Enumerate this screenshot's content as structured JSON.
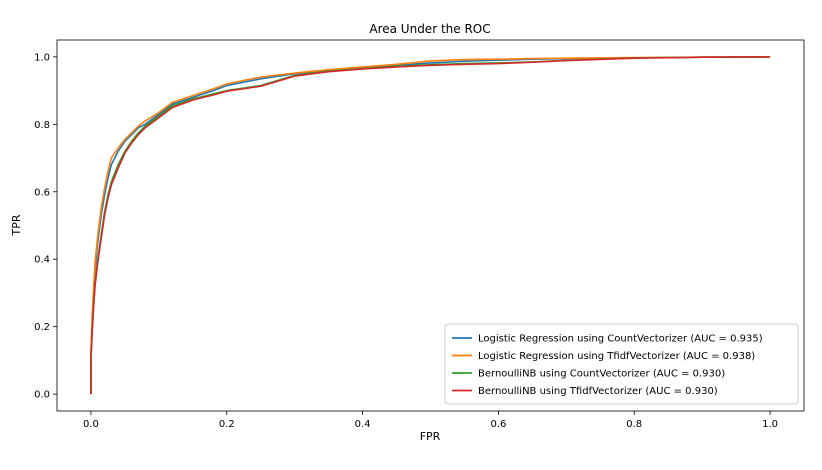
{
  "chart_data": {
    "type": "line",
    "title": "Area Under the ROC",
    "xlabel": "FPR",
    "ylabel": "TPR",
    "xlim": [
      -0.05,
      1.05
    ],
    "ylim": [
      -0.05,
      1.05
    ],
    "xticks": [
      0.0,
      0.2,
      0.4,
      0.6,
      0.8,
      1.0
    ],
    "yticks": [
      0.0,
      0.2,
      0.4,
      0.6,
      0.8,
      1.0
    ],
    "xtick_labels": [
      "0.0",
      "0.2",
      "0.4",
      "0.6",
      "0.8",
      "1.0"
    ],
    "ytick_labels": [
      "0.0",
      "0.2",
      "0.4",
      "0.6",
      "0.8",
      "1.0"
    ],
    "grid": false,
    "legend_position": "lower-right",
    "series": [
      {
        "name": "Logistic Regression using CountVectorizer (AUC = 0.935)",
        "color": "#1f77b4",
        "x": [
          0.0,
          0.0,
          0.002,
          0.004,
          0.006,
          0.01,
          0.015,
          0.02,
          0.025,
          0.03,
          0.04,
          0.05,
          0.06,
          0.07,
          0.08,
          0.1,
          0.12,
          0.15,
          0.18,
          0.2,
          0.25,
          0.3,
          0.35,
          0.4,
          0.45,
          0.5,
          0.55,
          0.6,
          0.65,
          0.7,
          0.8,
          0.9,
          1.0
        ],
        "y": [
          0.0,
          0.12,
          0.22,
          0.3,
          0.37,
          0.45,
          0.53,
          0.59,
          0.64,
          0.68,
          0.72,
          0.75,
          0.77,
          0.79,
          0.8,
          0.83,
          0.86,
          0.88,
          0.9,
          0.915,
          0.935,
          0.95,
          0.96,
          0.968,
          0.975,
          0.982,
          0.987,
          0.99,
          0.993,
          0.995,
          0.997,
          0.999,
          1.0
        ]
      },
      {
        "name": "Logistic Regression using TfidfVectorizer (AUC = 0.938)",
        "color": "#ff7f0e",
        "x": [
          0.0,
          0.0,
          0.002,
          0.004,
          0.006,
          0.01,
          0.015,
          0.02,
          0.025,
          0.03,
          0.04,
          0.05,
          0.06,
          0.07,
          0.08,
          0.1,
          0.12,
          0.15,
          0.18,
          0.2,
          0.25,
          0.3,
          0.35,
          0.4,
          0.45,
          0.5,
          0.55,
          0.6,
          0.65,
          0.7,
          0.8,
          0.9,
          1.0
        ],
        "y": [
          0.0,
          0.13,
          0.24,
          0.32,
          0.39,
          0.47,
          0.55,
          0.61,
          0.66,
          0.7,
          0.73,
          0.755,
          0.775,
          0.795,
          0.81,
          0.835,
          0.865,
          0.885,
          0.905,
          0.92,
          0.94,
          0.952,
          0.962,
          0.97,
          0.978,
          0.988,
          0.992,
          0.993,
          0.995,
          0.996,
          0.998,
          0.999,
          1.0
        ]
      },
      {
        "name": "BernoulliNB using CountVectorizer (AUC = 0.930)",
        "color": "#2ca02c",
        "x": [
          0.0,
          0.0,
          0.002,
          0.004,
          0.006,
          0.01,
          0.015,
          0.02,
          0.025,
          0.03,
          0.04,
          0.05,
          0.06,
          0.07,
          0.08,
          0.1,
          0.12,
          0.15,
          0.18,
          0.2,
          0.25,
          0.3,
          0.35,
          0.4,
          0.45,
          0.5,
          0.55,
          0.6,
          0.65,
          0.7,
          0.8,
          0.9,
          1.0
        ],
        "y": [
          0.0,
          0.11,
          0.2,
          0.27,
          0.33,
          0.4,
          0.47,
          0.54,
          0.59,
          0.63,
          0.68,
          0.72,
          0.75,
          0.775,
          0.795,
          0.825,
          0.855,
          0.875,
          0.89,
          0.9,
          0.915,
          0.945,
          0.958,
          0.965,
          0.972,
          0.977,
          0.98,
          0.982,
          0.985,
          0.99,
          0.997,
          0.999,
          1.0
        ]
      },
      {
        "name": "BernoulliNB using TfidfVectorizer (AUC = 0.930)",
        "color": "#d62728",
        "x": [
          0.0,
          0.0,
          0.002,
          0.004,
          0.006,
          0.01,
          0.015,
          0.02,
          0.025,
          0.03,
          0.04,
          0.05,
          0.06,
          0.07,
          0.08,
          0.1,
          0.12,
          0.15,
          0.18,
          0.2,
          0.25,
          0.3,
          0.35,
          0.4,
          0.45,
          0.5,
          0.55,
          0.6,
          0.65,
          0.7,
          0.8,
          0.9,
          1.0
        ],
        "y": [
          0.0,
          0.1,
          0.19,
          0.26,
          0.32,
          0.39,
          0.46,
          0.53,
          0.58,
          0.62,
          0.67,
          0.715,
          0.745,
          0.77,
          0.79,
          0.82,
          0.85,
          0.872,
          0.887,
          0.898,
          0.913,
          0.943,
          0.956,
          0.964,
          0.97,
          0.975,
          0.978,
          0.98,
          0.984,
          0.989,
          0.996,
          0.999,
          1.0
        ]
      }
    ]
  }
}
